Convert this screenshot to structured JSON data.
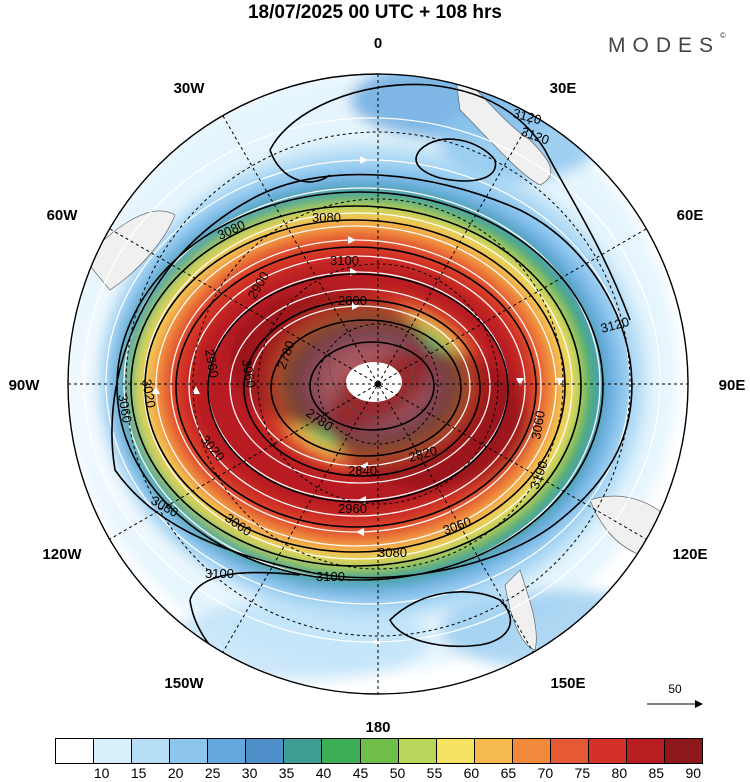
{
  "title": "18/07/2025  00 UTC  + 108 hrs",
  "brand": "MODES",
  "brand_mark": "©",
  "longitude_labels": [
    {
      "text": "0",
      "lon": 0
    },
    {
      "text": "30E",
      "lon": 30
    },
    {
      "text": "60E",
      "lon": 60
    },
    {
      "text": "90E",
      "lon": 90
    },
    {
      "text": "120E",
      "lon": 120
    },
    {
      "text": "150E",
      "lon": 150
    },
    {
      "text": "180",
      "lon": 180
    },
    {
      "text": "150W",
      "lon": -150
    },
    {
      "text": "120W",
      "lon": -120
    },
    {
      "text": "90W",
      "lon": -90
    },
    {
      "text": "60W",
      "lon": -60
    },
    {
      "text": "30W",
      "lon": -30
    }
  ],
  "reference_vector": {
    "label": "50"
  },
  "colorbar": {
    "colors": [
      "#ffffff",
      "#d8f0fc",
      "#b6def6",
      "#8cc6ee",
      "#64a8de",
      "#4e8fc9",
      "#3c9e95",
      "#3dae55",
      "#6ebe49",
      "#b9d75a",
      "#f5e263",
      "#f5b94f",
      "#f2893a",
      "#e55a34",
      "#d43128",
      "#b81d22",
      "#8e1719"
    ],
    "ticks": [
      "10",
      "15",
      "20",
      "25",
      "30",
      "35",
      "40",
      "45",
      "50",
      "55",
      "60",
      "65",
      "70",
      "75",
      "80",
      "85",
      "90"
    ]
  },
  "contour_labels": [
    "3120",
    "3120",
    "3120",
    "3080",
    "3060",
    "3100",
    "3100",
    "3100",
    "3080",
    "3060",
    "3020",
    "3060",
    "3020",
    "3060",
    "3080",
    "3080",
    "3100",
    "2800",
    "2780",
    "2780",
    "2820",
    "2840",
    "2960",
    "2900",
    "2960",
    "3060"
  ]
}
